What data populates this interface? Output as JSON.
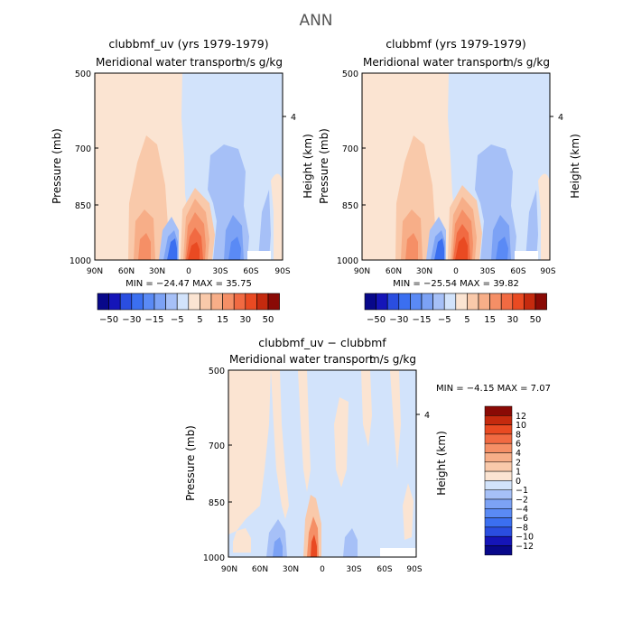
{
  "figure": {
    "title": "ANN"
  },
  "colors": {
    "neg": [
      "#08088a",
      "#1515b8",
      "#2a4ee0",
      "#3b6ff0",
      "#5a8af5",
      "#7ca2f5",
      "#a6c0f7",
      "#d2e3fb"
    ],
    "pos": [
      "#fbe4d2",
      "#f9c9aa",
      "#f7ae88",
      "#f58f66",
      "#f16a42",
      "#e94a22",
      "#c52a0e",
      "#8a0a05"
    ]
  },
  "chart_data": [
    {
      "type": "heatmap",
      "id": "p1",
      "title": "clubbmf_uv (yrs 1979-1979)",
      "subtitle_left": "Meridional water transport",
      "subtitle_right": "m/s g/kg",
      "ylabel": "Pressure (mb)",
      "ylabel_right": "Height (km)",
      "right_tick": "4",
      "y_ticks": [
        "500",
        "700",
        "850",
        "1000"
      ],
      "x_ticks": [
        "90N",
        "60N",
        "30N",
        "0",
        "30S",
        "60S",
        "90S"
      ],
      "minmax": "MIN = −24.47   MAX =  35.75",
      "levels": [
        "−50",
        "−30",
        "−15",
        "−5",
        "5",
        "15",
        "30",
        "50"
      ],
      "features": {
        "south_half_sign": "negative",
        "north_half_sign": "positive",
        "positive_core_max": 35.75,
        "negative_core_min": -24.47
      }
    },
    {
      "type": "heatmap",
      "id": "p2",
      "title": "clubbmf (yrs 1979-1979)",
      "subtitle_left": "Meridional water transport",
      "subtitle_right": "m/s g/kg",
      "ylabel": "Pressure (mb)",
      "ylabel_right": "Height (km)",
      "right_tick": "4",
      "y_ticks": [
        "500",
        "700",
        "850",
        "1000"
      ],
      "x_ticks": [
        "90N",
        "60N",
        "30N",
        "0",
        "30S",
        "60S",
        "90S"
      ],
      "minmax": "MIN = −25.54   MAX =  39.82",
      "levels": [
        "−50",
        "−30",
        "−15",
        "−5",
        "5",
        "15",
        "30",
        "50"
      ],
      "features": {
        "south_half_sign": "negative",
        "north_half_sign": "positive",
        "positive_core_max": 39.82,
        "negative_core_min": -25.54
      }
    },
    {
      "type": "heatmap",
      "id": "p3",
      "title": "clubbmf_uv − clubbmf",
      "subtitle_left": "Meridional water transport",
      "subtitle_right": "m/s g/kg",
      "ylabel": "Pressure (mb)",
      "ylabel_right": "Height (km)",
      "right_tick": "4",
      "y_ticks": [
        "500",
        "700",
        "850",
        "1000"
      ],
      "x_ticks": [
        "90N",
        "60N",
        "30N",
        "0",
        "30S",
        "60S",
        "90S"
      ],
      "minmax": "MIN =   −4.15   MAX =   7.07",
      "levels": [
        "12",
        "10",
        "8",
        "6",
        "4",
        "2",
        "1",
        "0",
        "−1",
        "−2",
        "−4",
        "−6",
        "−8",
        "−10",
        "−12"
      ],
      "features": {
        "positive_core_max": 7.07,
        "negative_core_min": -4.15
      }
    }
  ]
}
